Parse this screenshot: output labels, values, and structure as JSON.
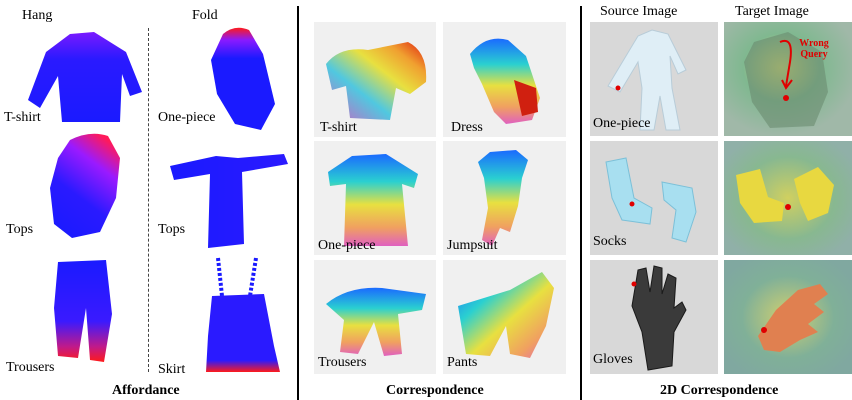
{
  "affordance": {
    "col_hang": "Hang",
    "col_fold": "Fold",
    "labels": [
      "T-shirt",
      "One-piece",
      "Tops",
      "Tops",
      "Trousers",
      "Skirt"
    ],
    "caption": "Affordance"
  },
  "correspondence": {
    "labels": [
      "T-shirt",
      "Dress",
      "One-piece",
      "Jumpsuit",
      "Trousers",
      "Pants"
    ],
    "caption": "Correspondence"
  },
  "correspondence_2d": {
    "col_source": "Source Image",
    "col_target": "Target Image",
    "labels": [
      "One-piece",
      "Socks",
      "Gloves"
    ],
    "annotation": "Wrong Query",
    "caption": "2D Correspondence"
  },
  "colors": {
    "affordance_blue": "#1a1aff",
    "affordance_red": "#ff1a1a",
    "separator": "#000000",
    "query_point": "#e00000"
  }
}
